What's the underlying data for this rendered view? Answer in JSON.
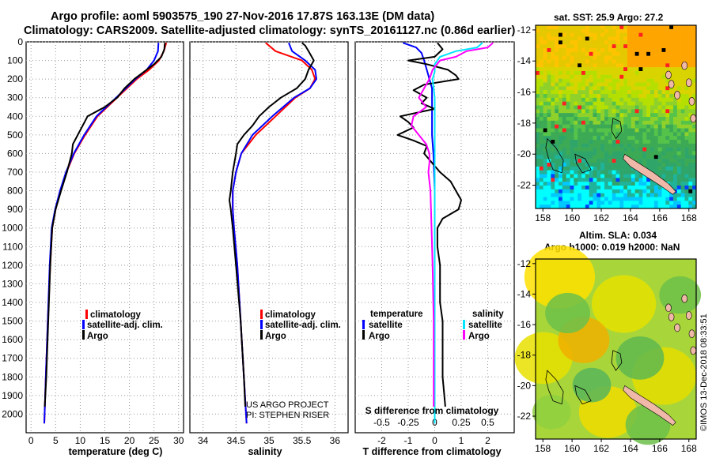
{
  "title": {
    "line1": "Argo profile: aoml 5903575_190 27-Nov-2016 17.87S 163.13E (DM data)",
    "line2": "Climatology: CARS2009. Satellite-adjusted climatology: synTS_20161127.nc (0.86d earlier)"
  },
  "colors": {
    "climatology": "#ff0000",
    "satellite": "#0000ff",
    "argo": "#000000",
    "t_sat": "#0000ff",
    "s_sat": "#00e5ff",
    "s_argo": "#ff00ff"
  },
  "chart_data": [
    {
      "id": "temperature",
      "type": "line",
      "xlabel": "temperature (deg C)",
      "ylabel": "",
      "xlim": [
        -1,
        31
      ],
      "ylim": [
        2100,
        0
      ],
      "xticks": [
        "0",
        "5",
        "10",
        "15",
        "20",
        "25",
        "30"
      ],
      "yticks": [
        "0",
        "100",
        "200",
        "300",
        "400",
        "500",
        "600",
        "700",
        "800",
        "900",
        "1000",
        "1100",
        "1200",
        "1300",
        "1400",
        "1500",
        "1600",
        "1700",
        "1800",
        "1900",
        "2000"
      ],
      "legend": [
        "climatology",
        "satellite-adj. clim.",
        "Argo"
      ],
      "series": [
        {
          "name": "climatology",
          "depth": [
            5,
            50,
            100,
            150,
            200,
            300,
            400,
            500,
            600,
            700,
            800,
            900,
            1000,
            1200,
            1500,
            1800,
            2050
          ],
          "values": [
            27.5,
            27.0,
            26.0,
            24.0,
            21.5,
            17.5,
            13.5,
            11.0,
            8.8,
            7.2,
            6.0,
            5.0,
            4.3,
            3.9,
            3.4,
            3.0,
            2.7
          ]
        },
        {
          "name": "satellite-adj. clim.",
          "depth": [
            5,
            50,
            100,
            150,
            200,
            300,
            400,
            500,
            600,
            700,
            800,
            900,
            1000,
            1200,
            1500,
            1800,
            2050
          ],
          "values": [
            25.9,
            25.8,
            25.0,
            23.5,
            21.2,
            17.3,
            13.3,
            10.8,
            8.7,
            7.1,
            5.9,
            4.9,
            4.2,
            3.8,
            3.4,
            3.0,
            2.7
          ]
        },
        {
          "name": "Argo",
          "depth": [
            5,
            40,
            80,
            120,
            160,
            200,
            250,
            300,
            350,
            400,
            450,
            500,
            550,
            600,
            700,
            800,
            900,
            1000,
            1200,
            1500,
            1800,
            1960
          ],
          "values": [
            27.2,
            27.1,
            26.5,
            25.0,
            23.0,
            21.0,
            19.0,
            17.5,
            15.0,
            11.5,
            10.5,
            9.5,
            8.5,
            8.3,
            7.3,
            6.1,
            5.0,
            4.3,
            3.9,
            3.5,
            3.1,
            2.8
          ]
        }
      ]
    },
    {
      "id": "salinity",
      "type": "line",
      "xlabel": "salinity",
      "ylabel": "",
      "xlim": [
        33.8,
        36.2
      ],
      "ylim": [
        2100,
        0
      ],
      "xticks": [
        "34",
        "34.5",
        "35",
        "35.5",
        "36"
      ],
      "legend": [
        "climatology",
        "satellite-adj. clim.",
        "Argo"
      ],
      "series": [
        {
          "name": "climatology",
          "depth": [
            5,
            50,
            100,
            150,
            200,
            250,
            300,
            400,
            500,
            600,
            700,
            800,
            900,
            1000,
            1200,
            1500,
            1800,
            2050
          ],
          "values": [
            34.95,
            35.1,
            35.5,
            35.65,
            35.7,
            35.62,
            35.4,
            35.1,
            34.8,
            34.58,
            34.5,
            34.45,
            34.45,
            34.47,
            34.52,
            34.57,
            34.62,
            34.66
          ]
        },
        {
          "name": "satellite-adj. clim.",
          "depth": [
            5,
            50,
            100,
            150,
            200,
            250,
            300,
            400,
            500,
            600,
            700,
            800,
            900,
            1000,
            1200,
            1500,
            1800,
            2050
          ],
          "values": [
            35.3,
            35.35,
            35.55,
            35.7,
            35.72,
            35.62,
            35.38,
            35.05,
            34.75,
            34.58,
            34.5,
            34.45,
            34.45,
            34.47,
            34.52,
            34.57,
            34.62,
            34.66
          ]
        },
        {
          "name": "Argo",
          "depth": [
            5,
            20,
            50,
            100,
            150,
            200,
            250,
            300,
            350,
            400,
            450,
            500,
            550,
            600,
            700,
            800,
            850,
            900,
            1000,
            1200,
            1500,
            1800,
            1960
          ],
          "values": [
            35.5,
            35.55,
            35.6,
            35.68,
            35.6,
            35.55,
            35.42,
            35.18,
            35.0,
            34.85,
            34.75,
            34.62,
            34.52,
            34.5,
            34.45,
            34.42,
            34.4,
            34.42,
            34.45,
            34.5,
            34.57,
            34.62,
            34.64
          ]
        }
      ],
      "annotations": [
        "US ARGO PROJECT",
        "PI: STEPHEN RISER"
      ]
    },
    {
      "id": "difference",
      "type": "line",
      "xlabel": "T difference from climatology",
      "xlabel_top": "S difference from climatology",
      "xlim": [
        -3,
        3
      ],
      "ylim": [
        2100,
        0
      ],
      "xticks": [
        "-2",
        "-1",
        "0",
        "1",
        "2"
      ],
      "sticks": [
        "-0.5",
        "-0.25",
        "0",
        "0.25",
        "0.5"
      ],
      "legend_left_title": "temperature",
      "legend_right_title": "salinity",
      "legend": [
        "satellite",
        "Argo"
      ],
      "series": [
        {
          "name": "temperature satellite",
          "depth": [
            5,
            30,
            60,
            100,
            150,
            200,
            250,
            300,
            400,
            500,
            600,
            800,
            1000,
            1500,
            2050
          ],
          "values": [
            -1.2,
            -0.7,
            -0.5,
            -0.4,
            -0.3,
            -0.2,
            -0.1,
            -0.1,
            -0.1,
            -0.1,
            -0.05,
            0,
            0,
            0,
            0
          ]
        },
        {
          "name": "temperature Argo",
          "depth": [
            5,
            40,
            80,
            100,
            120,
            150,
            180,
            200,
            230,
            260,
            300,
            330,
            360,
            400,
            430,
            460,
            500,
            530,
            560,
            600,
            650,
            700,
            750,
            800,
            850,
            900,
            950,
            1000,
            1100,
            1200,
            1400,
            1500,
            1600,
            1800,
            1960
          ],
          "values": [
            0.1,
            0.3,
            0.0,
            -1.0,
            -0.3,
            0.5,
            0.8,
            0.9,
            -0.4,
            -0.8,
            -0.3,
            -0.5,
            0.0,
            -1.3,
            -1.0,
            -0.8,
            -1.4,
            -0.8,
            -0.3,
            -0.4,
            -0.1,
            0.2,
            0.6,
            0.8,
            1.0,
            0.9,
            0.3,
            0.1,
            0.1,
            0.2,
            0.2,
            0.3,
            0.3,
            0.3,
            0.4
          ]
        },
        {
          "name": "salinity satellite",
          "depth": [
            5,
            30,
            50,
            80,
            120,
            160,
            200,
            300,
            400,
            600,
            800,
            1000,
            1500,
            2050
          ],
          "values": [
            0.45,
            0.4,
            0.2,
            0.05,
            0.0,
            0.0,
            -0.02,
            0.0,
            0.0,
            0.0,
            0.0,
            0.0,
            0.0,
            0.0
          ]
        },
        {
          "name": "salinity Argo",
          "depth": [
            5,
            30,
            50,
            80,
            100,
            150,
            200,
            250,
            300,
            350,
            400,
            450,
            500,
            550,
            600,
            650,
            700,
            800,
            1000,
            1200,
            1500,
            1800,
            1960
          ],
          "values": [
            0.55,
            0.5,
            0.3,
            0.2,
            0.05,
            -0.02,
            -0.05,
            -0.1,
            -0.15,
            -0.08,
            -0.2,
            -0.22,
            -0.15,
            -0.08,
            -0.05,
            -0.05,
            -0.06,
            -0.04,
            -0.03,
            -0.02,
            -0.01,
            -0.01,
            -0.01
          ]
        }
      ]
    }
  ],
  "maps": {
    "sst_title": "sat. SST: 25.9 Argo: 27.2",
    "sla_title1": "Altim. SLA: 0.034",
    "sla_title2": "Argo h1000: 0.019 h2000: NaN",
    "lon_ticks": [
      "158",
      "160",
      "162",
      "164",
      "166",
      "168"
    ],
    "lat_ticks": [
      "-12",
      "-14",
      "-16",
      "-18",
      "-20",
      "-22"
    ],
    "lon_range": [
      157.5,
      168.5
    ],
    "lat_range": [
      -23.5,
      -11.7
    ]
  },
  "watermark": "©IMOS 13-Dec-2018 08:33:51"
}
